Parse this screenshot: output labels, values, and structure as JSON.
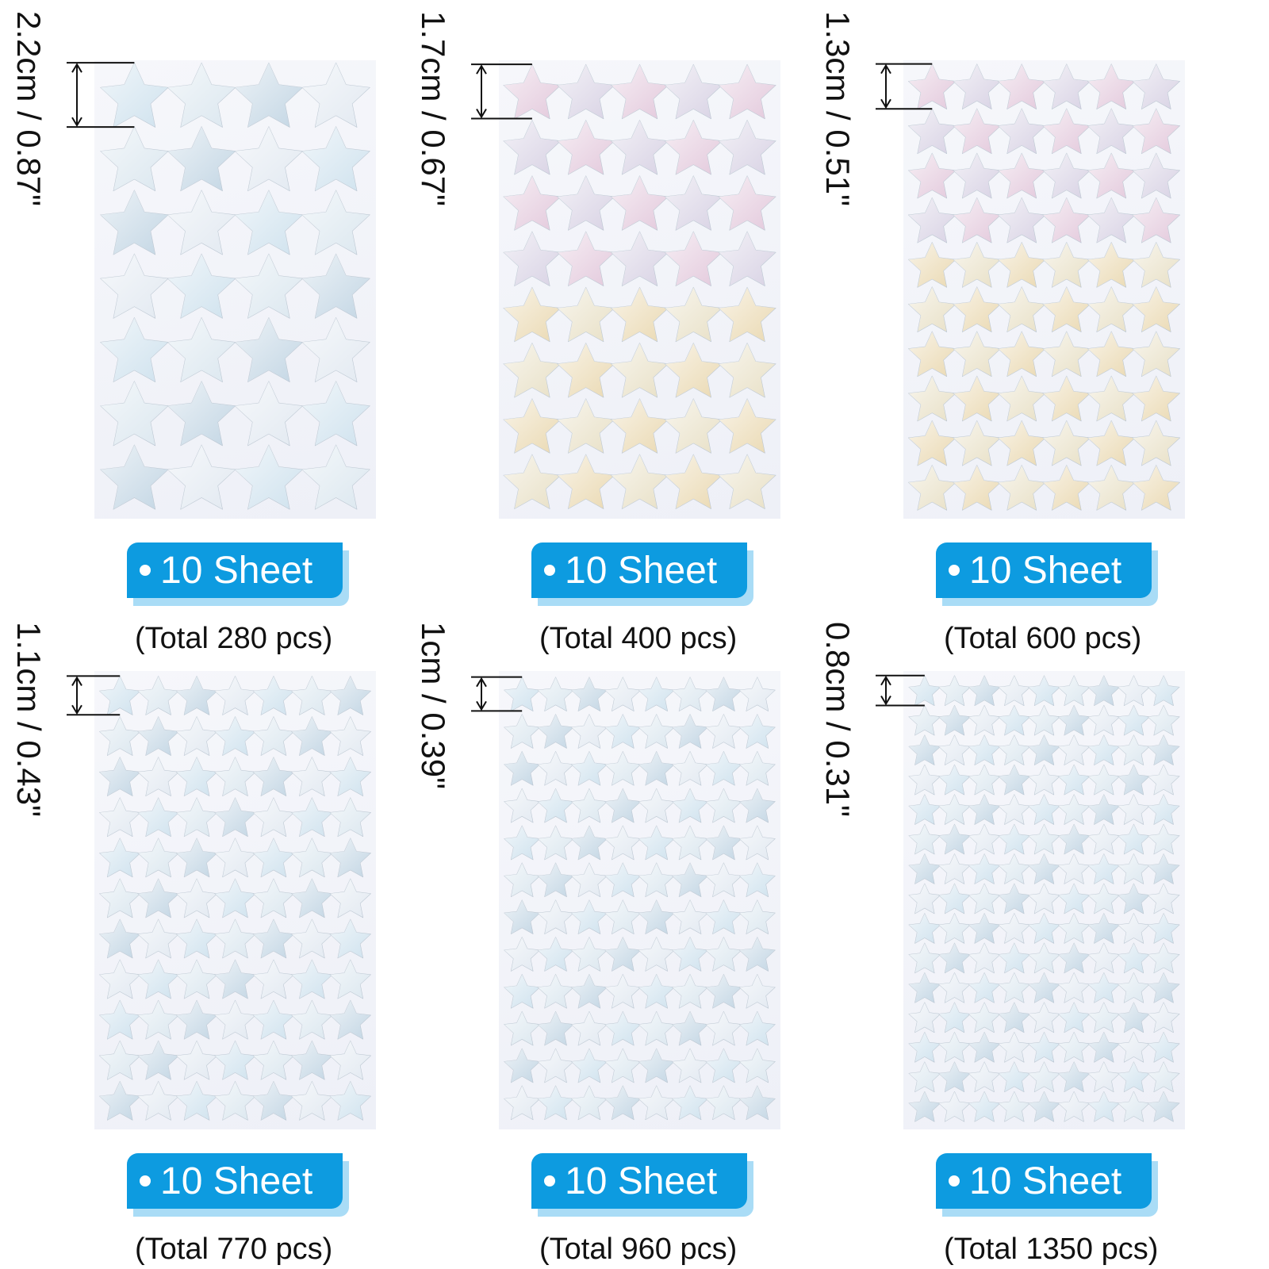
{
  "colors": {
    "badge": "#0d9be0",
    "badge_shadow": "#a9dcf6",
    "sheet": "#f1f2f8",
    "silver_star": "#cfe2ee",
    "gold_star": "#ead9b2",
    "pink_star": "#e3c9dc"
  },
  "panels": [
    {
      "size_label": "2.2cm / 0.87\"",
      "badge_label": "10 Sheet",
      "total_label": "(Total 280 pcs)",
      "star_icon": "star-icon",
      "cols": 4,
      "rows": 7,
      "palette": "silver"
    },
    {
      "size_label": "1.7cm / 0.67\"",
      "badge_label": "10 Sheet",
      "total_label": "(Total 400 pcs)",
      "star_icon": "star-icon",
      "cols": 5,
      "rows": 8,
      "palette": "gold"
    },
    {
      "size_label": "1.3cm / 0.51\"",
      "badge_label": "10 Sheet",
      "total_label": "(Total 600 pcs)",
      "star_icon": "star-icon",
      "cols": 6,
      "rows": 10,
      "palette": "gold"
    },
    {
      "size_label": "1.1cm / 0.43\"",
      "badge_label": "10 Sheet",
      "total_label": "(Total 770 pcs)",
      "star_icon": "star-icon",
      "cols": 7,
      "rows": 11,
      "palette": "silver"
    },
    {
      "size_label": "1cm / 0.39\"",
      "badge_label": "10 Sheet",
      "total_label": "(Total 960 pcs)",
      "star_icon": "star-icon",
      "cols": 8,
      "rows": 12,
      "palette": "silver"
    },
    {
      "size_label": "0.8cm / 0.31\"",
      "badge_label": "10 Sheet",
      "total_label": "(Total 1350 pcs)",
      "star_icon": "star-icon",
      "cols": 9,
      "rows": 15,
      "palette": "silver"
    }
  ]
}
